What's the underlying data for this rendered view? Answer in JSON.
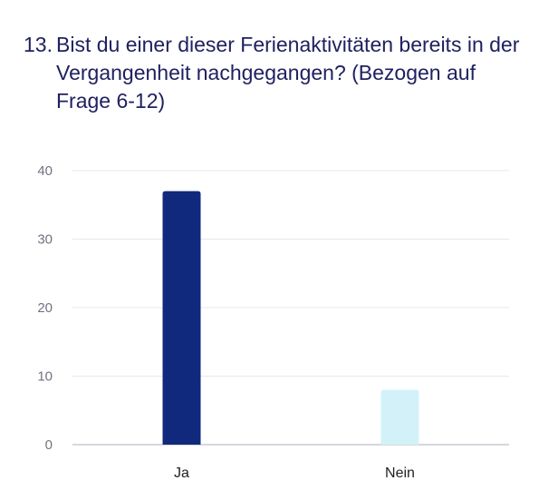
{
  "question": {
    "number": "13.",
    "text": "Bist du einer dieser Ferienaktivitäten bereits in der Vergangenheit nachgegangen? (Bezogen auf Frage 6-12)"
  },
  "chart_data": {
    "type": "bar",
    "title": "13. Bist du einer dieser Ferienaktivitäten bereits in der Vergangenheit nachgegangen? (Bezogen auf Frage 6-12)",
    "xlabel": "",
    "ylabel": "",
    "categories": [
      "Ja",
      "Nein"
    ],
    "values": [
      37,
      8
    ],
    "colors": [
      "#11297d",
      "#d3f1f9"
    ],
    "yticks": [
      0,
      10,
      20,
      30,
      40
    ],
    "ylim": [
      0,
      40
    ],
    "grid": true,
    "legend": "none"
  }
}
